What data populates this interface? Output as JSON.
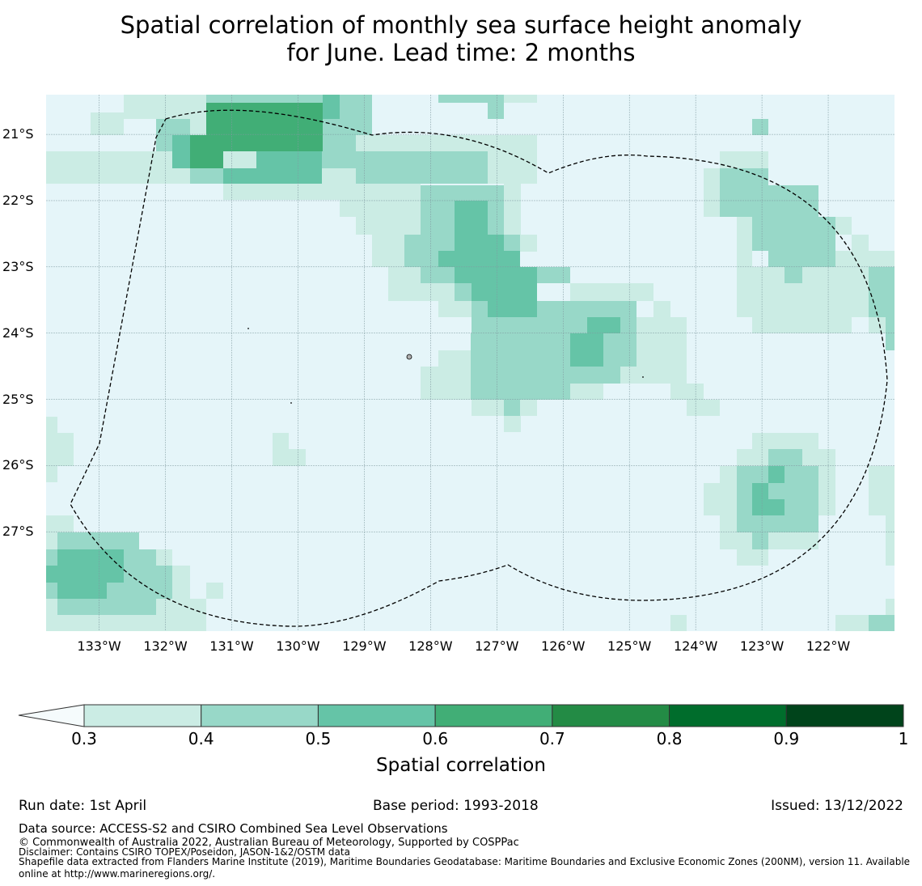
{
  "title": {
    "line1": "Spatial correlation of monthly sea surface height anomaly",
    "line2": "for June. Lead time: 2 months"
  },
  "map": {
    "lat_labels": [
      "21°S",
      "22°S",
      "23°S",
      "24°S",
      "25°S",
      "26°S",
      "27°S"
    ],
    "lon_labels": [
      "133°W",
      "132°W",
      "131°W",
      "130°W",
      "129°W",
      "128°W",
      "127°W",
      "126°W",
      "125°W",
      "124°W",
      "123°W",
      "122°W"
    ],
    "lon_range": [
      -133.8,
      -121.0
    ],
    "lat_range": [
      -28.5,
      -20.4
    ],
    "colors": {
      "background": "#e5f5f9",
      "c03": "#cbece4",
      "c04": "#98d8c8",
      "c05": "#65c4a7",
      "c06": "#41ae76",
      "c07": "#238b45",
      "c08": "#006d2c",
      "c09": "#00441b",
      "grid": "#7f9aa0",
      "eez_line": "#000000"
    }
  },
  "colorbar": {
    "ticks": [
      "0.3",
      "0.4",
      "0.5",
      "0.6",
      "0.7",
      "0.8",
      "0.9",
      "1"
    ],
    "label": "Spatial correlation"
  },
  "footer": {
    "run_date": "Run date: 1st April",
    "base_period": "Base period: 1993-2018",
    "issued": "Issued: 13/12/2022",
    "data_source": "Data source: ACCESS-S2 and CSIRO Combined Sea Level Observations",
    "copyright": "© Commonwealth of Australia 2022, Australian Bureau of Meteorology, Supported by COSPPac",
    "disclaimer": "Disclaimer: Contains CSIRO TOPEX/Poseidon, JASON-1&2/OSTM data",
    "shapefile_line1": "Shapefile data extracted from Flanders Marine Institute (2019), Maritime Boundaries Geodatabase: Maritime Boundaries and Exclusive Economic Zones (200NM), version 11. Available",
    "shapefile_line2": "online at http://www.marineregions.org/."
  }
}
